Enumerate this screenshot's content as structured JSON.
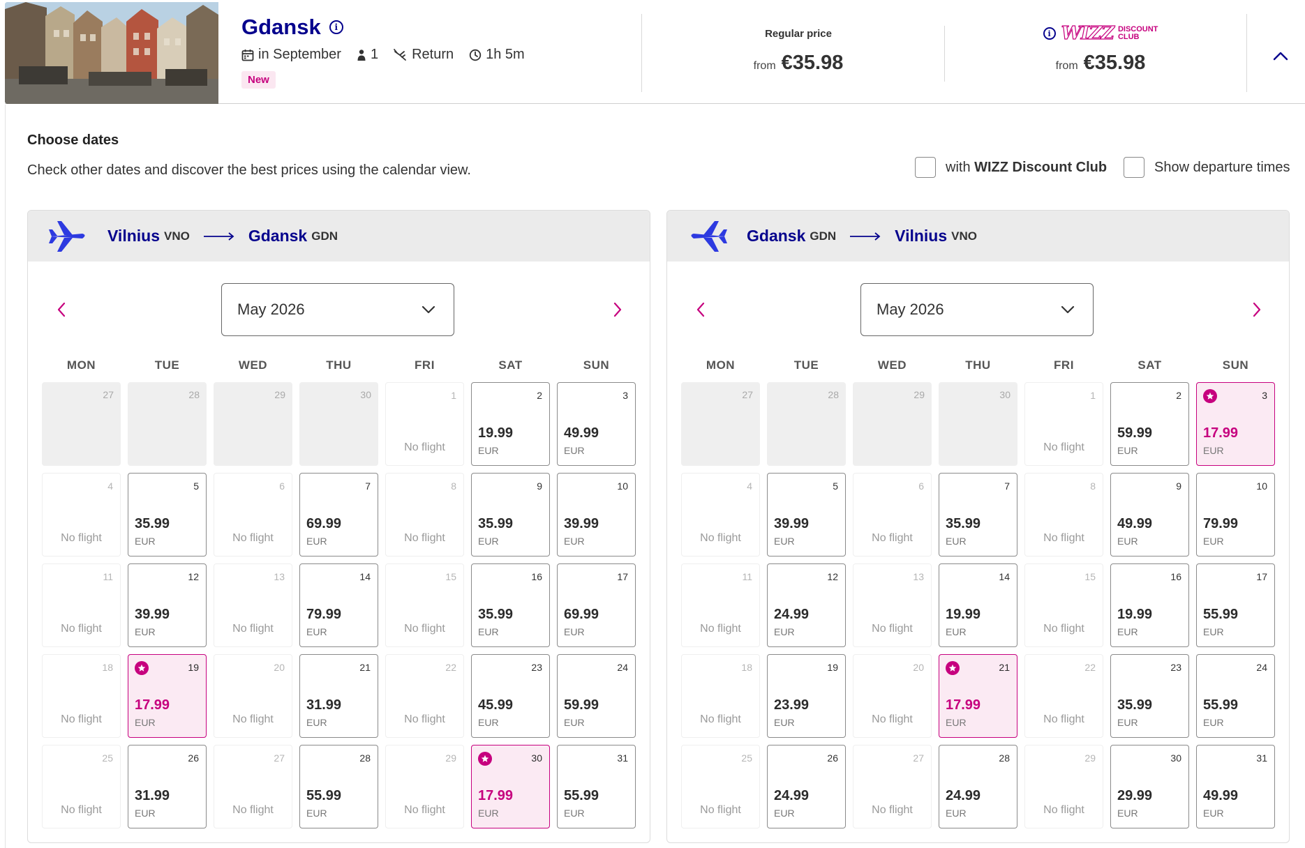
{
  "header": {
    "destination": "Gdansk",
    "info_icon": "info-circle-icon",
    "when": "in September",
    "passengers": "1",
    "trip_type": "Return",
    "duration": "1h 5m",
    "badge": "New",
    "regular": {
      "label": "Regular price",
      "from": "from",
      "price": "€35.98"
    },
    "discount": {
      "logo_word": "WIZZ",
      "logo_line1": "DISCOUNT",
      "logo_line2": "CLUB",
      "from": "from",
      "price": "€35.98"
    }
  },
  "choose": {
    "title": "Choose dates",
    "description": "Check other dates and discover the best prices using the calendar view.",
    "toggle_dc_prefix": "with ",
    "toggle_dc_bold": "WIZZ Discount Club",
    "toggle_times": "Show departure times"
  },
  "colors": {
    "brand_blue": "#06038d",
    "brand_pink": "#c6007e",
    "discount_bg": "#fbeaf3"
  },
  "calendar": {
    "weekdays": [
      "MON",
      "TUE",
      "WED",
      "THU",
      "FRI",
      "SAT",
      "SUN"
    ],
    "no_flight": "No flight",
    "currency": "EUR",
    "outbound": {
      "from_city": "Vilnius",
      "from_code": "VNO",
      "to_city": "Gdansk",
      "to_code": "GDN",
      "month": "May 2026",
      "days": [
        {
          "d": "27",
          "s": "other"
        },
        {
          "d": "28",
          "s": "other"
        },
        {
          "d": "29",
          "s": "other"
        },
        {
          "d": "30",
          "s": "other"
        },
        {
          "d": "1",
          "s": "nf"
        },
        {
          "d": "2",
          "s": "pr",
          "p": "19.99"
        },
        {
          "d": "3",
          "s": "pr",
          "p": "49.99"
        },
        {
          "d": "4",
          "s": "nf"
        },
        {
          "d": "5",
          "s": "pr",
          "p": "35.99"
        },
        {
          "d": "6",
          "s": "nf"
        },
        {
          "d": "7",
          "s": "pr",
          "p": "69.99"
        },
        {
          "d": "8",
          "s": "nf"
        },
        {
          "d": "9",
          "s": "pr",
          "p": "35.99"
        },
        {
          "d": "10",
          "s": "pr",
          "p": "39.99"
        },
        {
          "d": "11",
          "s": "nf"
        },
        {
          "d": "12",
          "s": "pr",
          "p": "39.99"
        },
        {
          "d": "13",
          "s": "nf"
        },
        {
          "d": "14",
          "s": "pr",
          "p": "79.99"
        },
        {
          "d": "15",
          "s": "nf"
        },
        {
          "d": "16",
          "s": "pr",
          "p": "35.99"
        },
        {
          "d": "17",
          "s": "pr",
          "p": "69.99"
        },
        {
          "d": "18",
          "s": "nf"
        },
        {
          "d": "19",
          "s": "dc",
          "p": "17.99"
        },
        {
          "d": "20",
          "s": "nf"
        },
        {
          "d": "21",
          "s": "pr",
          "p": "31.99"
        },
        {
          "d": "22",
          "s": "nf"
        },
        {
          "d": "23",
          "s": "pr",
          "p": "45.99"
        },
        {
          "d": "24",
          "s": "pr",
          "p": "59.99"
        },
        {
          "d": "25",
          "s": "nf"
        },
        {
          "d": "26",
          "s": "pr",
          "p": "31.99"
        },
        {
          "d": "27",
          "s": "nf"
        },
        {
          "d": "28",
          "s": "pr",
          "p": "55.99"
        },
        {
          "d": "29",
          "s": "nf"
        },
        {
          "d": "30",
          "s": "dc",
          "p": "17.99"
        },
        {
          "d": "31",
          "s": "pr",
          "p": "55.99"
        }
      ]
    },
    "inbound": {
      "from_city": "Gdansk",
      "from_code": "GDN",
      "to_city": "Vilnius",
      "to_code": "VNO",
      "month": "May 2026",
      "days": [
        {
          "d": "27",
          "s": "other"
        },
        {
          "d": "28",
          "s": "other"
        },
        {
          "d": "29",
          "s": "other"
        },
        {
          "d": "30",
          "s": "other"
        },
        {
          "d": "1",
          "s": "nf"
        },
        {
          "d": "2",
          "s": "pr",
          "p": "59.99"
        },
        {
          "d": "3",
          "s": "dc",
          "p": "17.99"
        },
        {
          "d": "4",
          "s": "nf"
        },
        {
          "d": "5",
          "s": "pr",
          "p": "39.99"
        },
        {
          "d": "6",
          "s": "nf"
        },
        {
          "d": "7",
          "s": "pr",
          "p": "35.99"
        },
        {
          "d": "8",
          "s": "nf"
        },
        {
          "d": "9",
          "s": "pr",
          "p": "49.99"
        },
        {
          "d": "10",
          "s": "pr",
          "p": "79.99"
        },
        {
          "d": "11",
          "s": "nf"
        },
        {
          "d": "12",
          "s": "pr",
          "p": "24.99"
        },
        {
          "d": "13",
          "s": "nf"
        },
        {
          "d": "14",
          "s": "pr",
          "p": "19.99"
        },
        {
          "d": "15",
          "s": "nf"
        },
        {
          "d": "16",
          "s": "pr",
          "p": "19.99"
        },
        {
          "d": "17",
          "s": "pr",
          "p": "55.99"
        },
        {
          "d": "18",
          "s": "nf"
        },
        {
          "d": "19",
          "s": "pr",
          "p": "23.99"
        },
        {
          "d": "20",
          "s": "nf"
        },
        {
          "d": "21",
          "s": "dc",
          "p": "17.99"
        },
        {
          "d": "22",
          "s": "nf"
        },
        {
          "d": "23",
          "s": "pr",
          "p": "35.99"
        },
        {
          "d": "24",
          "s": "pr",
          "p": "55.99"
        },
        {
          "d": "25",
          "s": "nf"
        },
        {
          "d": "26",
          "s": "pr",
          "p": "24.99"
        },
        {
          "d": "27",
          "s": "nf"
        },
        {
          "d": "28",
          "s": "pr",
          "p": "24.99"
        },
        {
          "d": "29",
          "s": "nf"
        },
        {
          "d": "30",
          "s": "pr",
          "p": "29.99"
        },
        {
          "d": "31",
          "s": "pr",
          "p": "49.99"
        }
      ]
    }
  }
}
